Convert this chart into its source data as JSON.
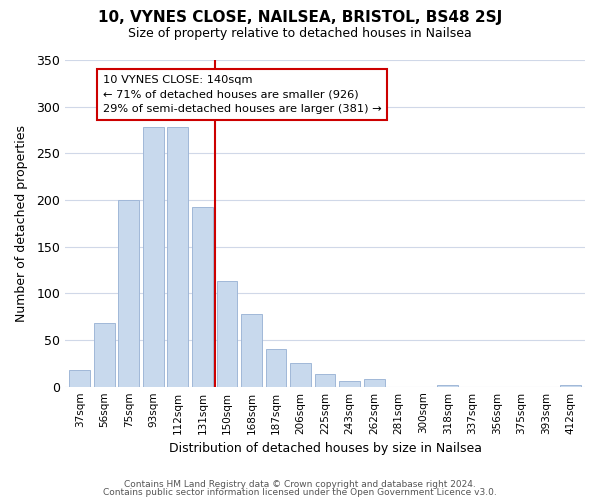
{
  "title": "10, VYNES CLOSE, NAILSEA, BRISTOL, BS48 2SJ",
  "subtitle": "Size of property relative to detached houses in Nailsea",
  "xlabel": "Distribution of detached houses by size in Nailsea",
  "ylabel": "Number of detached properties",
  "bar_color": "#c8d9ed",
  "bar_edge_color": "#a0b8d8",
  "categories": [
    "37sqm",
    "56sqm",
    "75sqm",
    "93sqm",
    "112sqm",
    "131sqm",
    "150sqm",
    "168sqm",
    "187sqm",
    "206sqm",
    "225sqm",
    "243sqm",
    "262sqm",
    "281sqm",
    "300sqm",
    "318sqm",
    "337sqm",
    "356sqm",
    "375sqm",
    "393sqm",
    "412sqm"
  ],
  "values": [
    18,
    68,
    200,
    278,
    278,
    193,
    113,
    78,
    40,
    25,
    14,
    6,
    8,
    0,
    0,
    2,
    0,
    0,
    0,
    0,
    2
  ],
  "ylim": [
    0,
    350
  ],
  "yticks": [
    0,
    50,
    100,
    150,
    200,
    250,
    300,
    350
  ],
  "property_line_x": 5.5,
  "annotation_title": "10 VYNES CLOSE: 140sqm",
  "annotation_line1": "← 71% of detached houses are smaller (926)",
  "annotation_line2": "29% of semi-detached houses are larger (381) →",
  "annotation_box_color": "#ffffff",
  "annotation_box_edge": "#cc0000",
  "vline_color": "#cc0000",
  "footer1": "Contains HM Land Registry data © Crown copyright and database right 2024.",
  "footer2": "Contains public sector information licensed under the Open Government Licence v3.0.",
  "background_color": "#ffffff",
  "grid_color": "#d0d8e8"
}
